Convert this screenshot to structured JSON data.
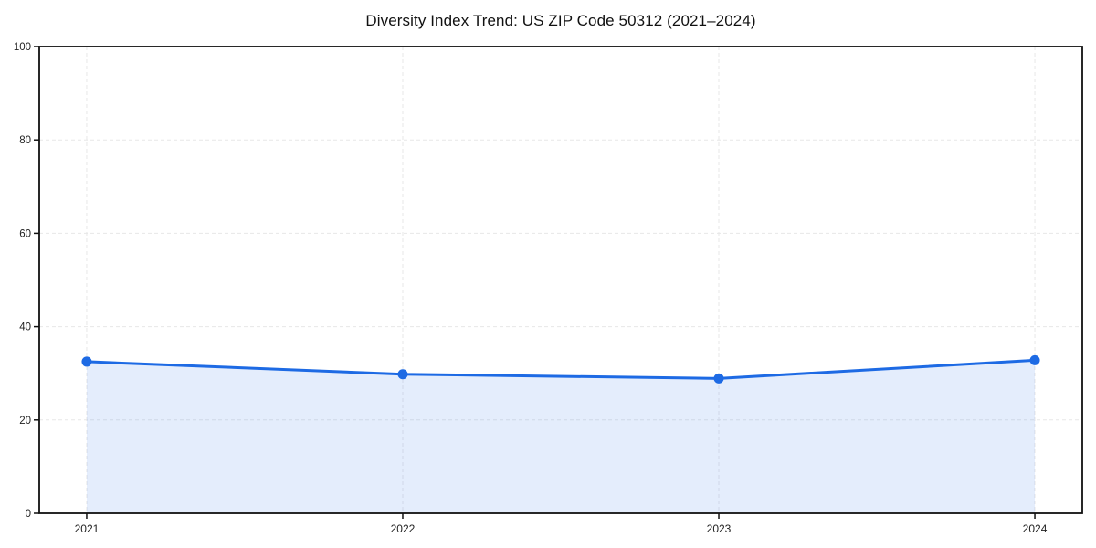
{
  "chart_data": {
    "type": "area",
    "title": "Diversity Index Trend: US ZIP Code 50312 (2021–2024)",
    "categories": [
      "2021",
      "2022",
      "2023",
      "2024"
    ],
    "series": [
      {
        "name": "Diversity Index",
        "values": [
          32.5,
          29.8,
          28.9,
          32.8
        ]
      }
    ],
    "xlabel": "",
    "ylabel": "",
    "ylim": [
      0,
      100
    ],
    "yticks": [
      0,
      20,
      40,
      60,
      80,
      100
    ],
    "grid": "dashed",
    "legend_position": "none",
    "colors": {
      "line": "#1d6ae4",
      "marker": "#1d6ae4",
      "fill": "rgba(29,106,228,0.12)",
      "grid": "#e7e7e7",
      "axis": "#111111",
      "tick_label": "#222222",
      "title": "#111111",
      "background": "#ffffff"
    }
  }
}
